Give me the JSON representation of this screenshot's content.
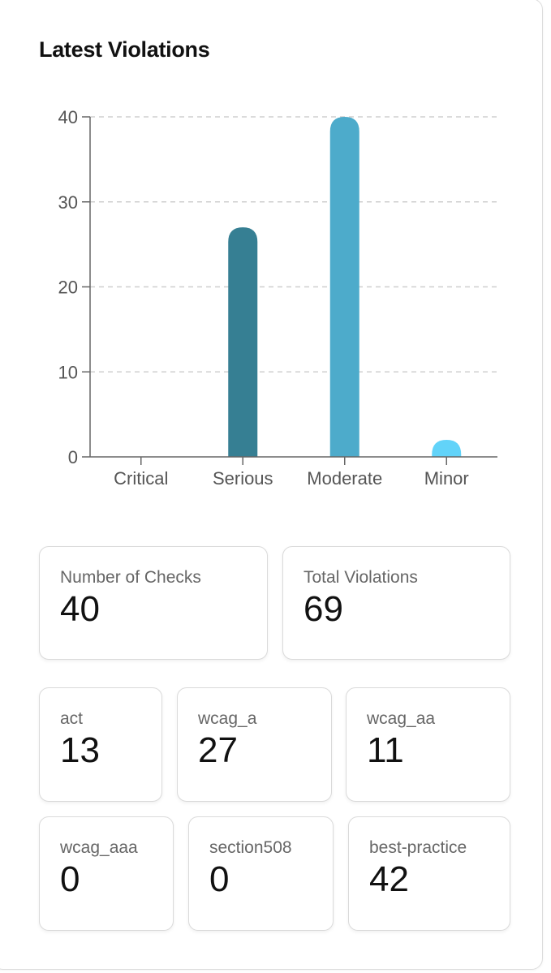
{
  "title": "Latest Violations",
  "chart_data": {
    "type": "bar",
    "categories": [
      "Critical",
      "Serious",
      "Moderate",
      "Minor"
    ],
    "values": [
      0,
      27,
      40,
      2
    ],
    "colors": [
      "#2e6f80",
      "#367f93",
      "#4dabcb",
      "#62d3f9"
    ],
    "yticks": [
      "0",
      "10",
      "20",
      "30",
      "40"
    ],
    "ylim": [
      0,
      40
    ],
    "grid": true,
    "xlabel": "",
    "ylabel": ""
  },
  "stats": [
    {
      "label": "Number of Checks",
      "value": "40"
    },
    {
      "label": "Total Violations",
      "value": "69"
    },
    {
      "label": "act",
      "value": "13"
    },
    {
      "label": "wcag_a",
      "value": "27"
    },
    {
      "label": "wcag_aa",
      "value": "11"
    },
    {
      "label": "wcag_aaa",
      "value": "0"
    },
    {
      "label": "section508",
      "value": "0"
    },
    {
      "label": "best-practice",
      "value": "42"
    }
  ]
}
